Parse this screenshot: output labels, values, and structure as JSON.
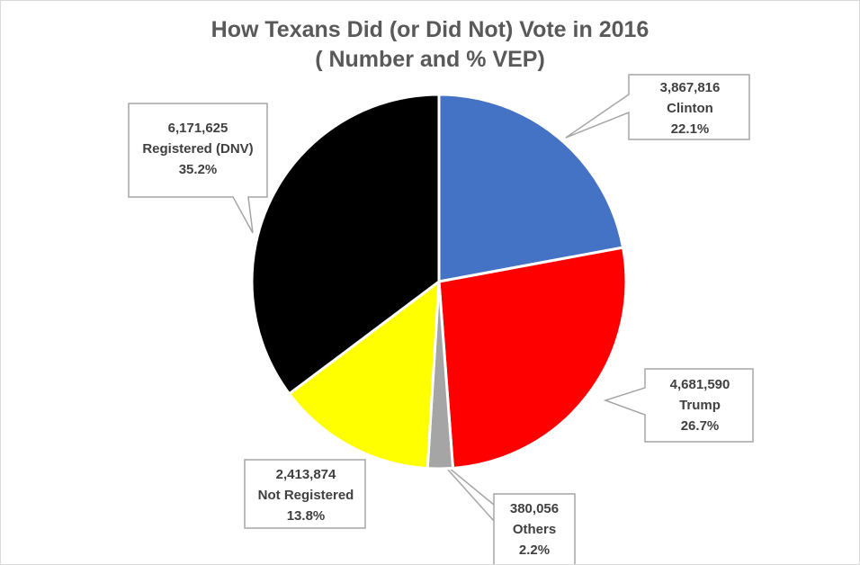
{
  "chart_data": {
    "type": "pie",
    "title": "How Texans Did (or Did Not) Vote in 2016",
    "subtitle": "( Number and % VEP)",
    "slices": [
      {
        "label": "Clinton",
        "value": 3867816,
        "value_label": "3,867,816",
        "percent_label": "22.1%",
        "color": "#4472c4"
      },
      {
        "label": "Trump",
        "value": 4681590,
        "value_label": "4,681,590",
        "percent_label": "26.7%",
        "color": "#ff0000"
      },
      {
        "label": "Others",
        "value": 380056,
        "value_label": "380,056",
        "percent_label": "2.2%",
        "color": "#a5a5a5"
      },
      {
        "label": "Not Registered",
        "value": 2413874,
        "value_label": "2,413,874",
        "percent_label": "13.8%",
        "color": "#ffff00"
      },
      {
        "label": "Registered (DNV)",
        "value": 6171625,
        "value_label": "6,171,625",
        "percent_label": "35.2%",
        "color": "#000000"
      }
    ],
    "start_angle": "12 o'clock",
    "direction": "clockwise",
    "legend": "none",
    "data_labels": "callouts"
  }
}
